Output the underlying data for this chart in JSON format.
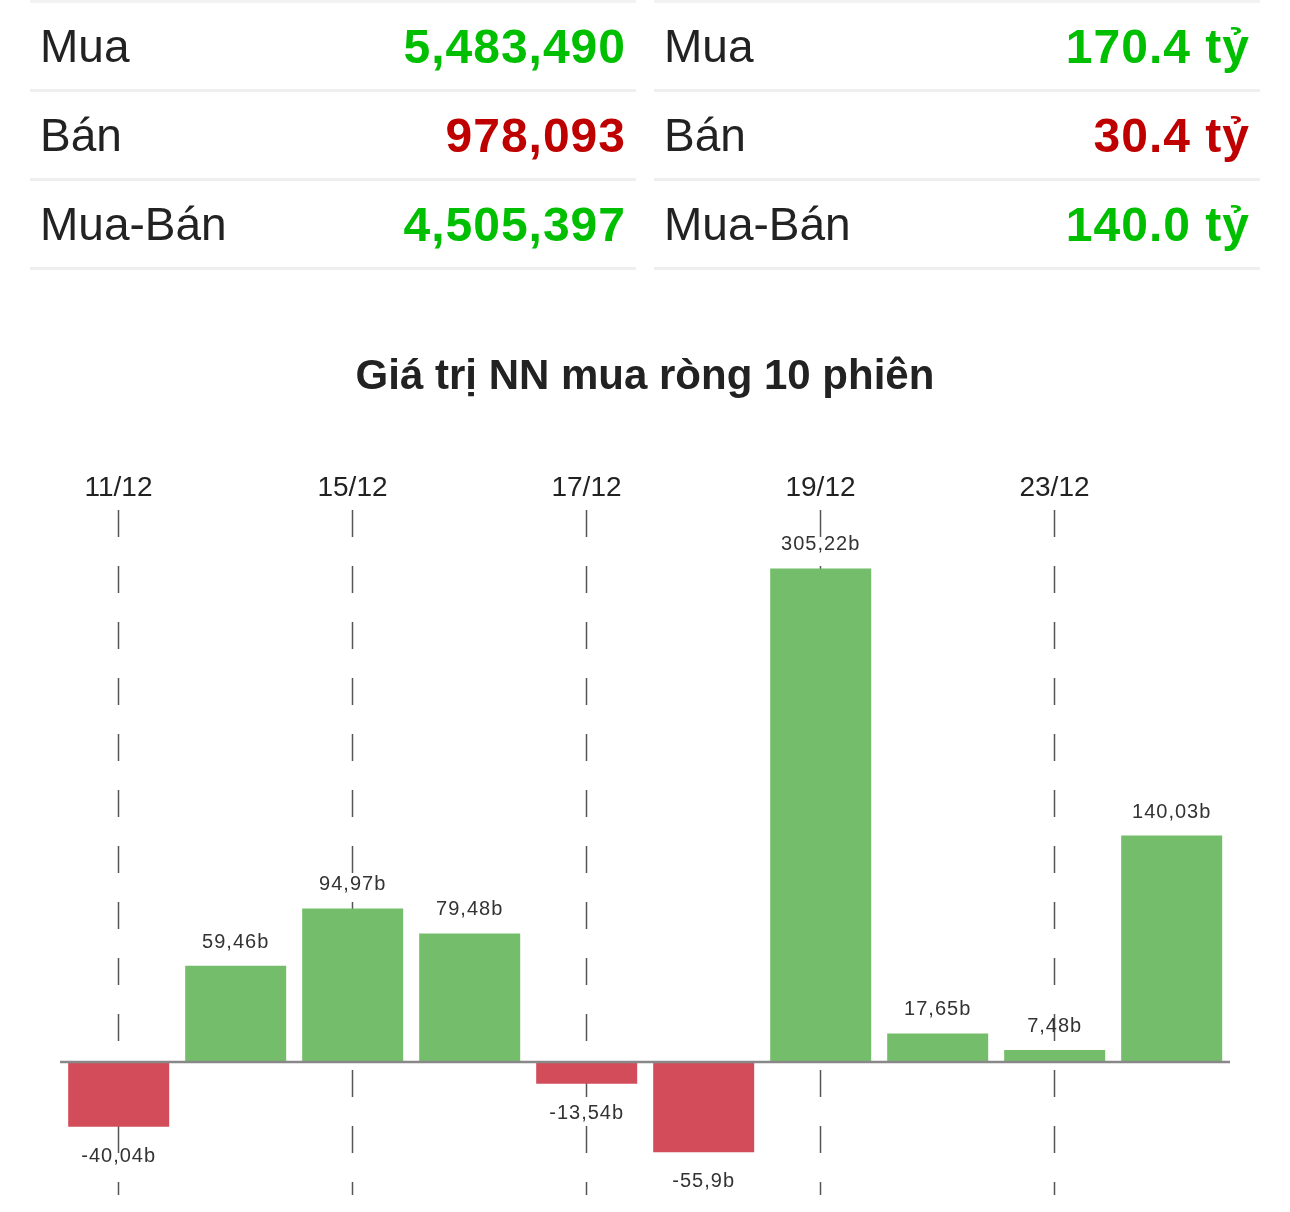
{
  "chart_data": [
    {
      "type": "other",
      "annotations": [
        "Mua",
        "5,483,490",
        "Bán",
        "978,093",
        "Mua-Bán",
        "4,505,397",
        "Mua",
        "170.4 tỷ",
        "Bán",
        "30.4 tỷ",
        "Mua-Bán",
        "140.0 tỷ"
      ],
      "colors": [
        "#222222",
        "#00bf00",
        "#222222",
        "#bf0000",
        "#222222",
        "#00bf00",
        "#222222",
        "#00bf00",
        "#222222",
        "#bf0000",
        "#222222",
        "#00bf00"
      ]
    },
    {
      "type": "bar",
      "title": "Giá trị NN mua ròng 10 phiên",
      "categories": [
        "11/12",
        null,
        "15/12",
        null,
        "17/12",
        null,
        "19/12",
        null,
        "23/12",
        null
      ],
      "values": [
        -40.04,
        59.46,
        94.97,
        79.48,
        -13.54,
        -55.9,
        305.22,
        17.65,
        7.48,
        140.03
      ],
      "colors": [
        "#d24c5a",
        "#74bd6b",
        "#74bd6b",
        "#74bd6b",
        "#d24c5a",
        "#d24c5a",
        "#74bd6b",
        "#74bd6b",
        "#74bd6b",
        "#74bd6b"
      ],
      "value_labels": [
        "-40,04b",
        "59,46b",
        "94,97b",
        "79,48b",
        "-13,54b",
        "-55,9b",
        "305,22b",
        "17,65b",
        "7,48b",
        "140,03b"
      ],
      "grid": "x",
      "tick_labels": "x"
    }
  ]
}
